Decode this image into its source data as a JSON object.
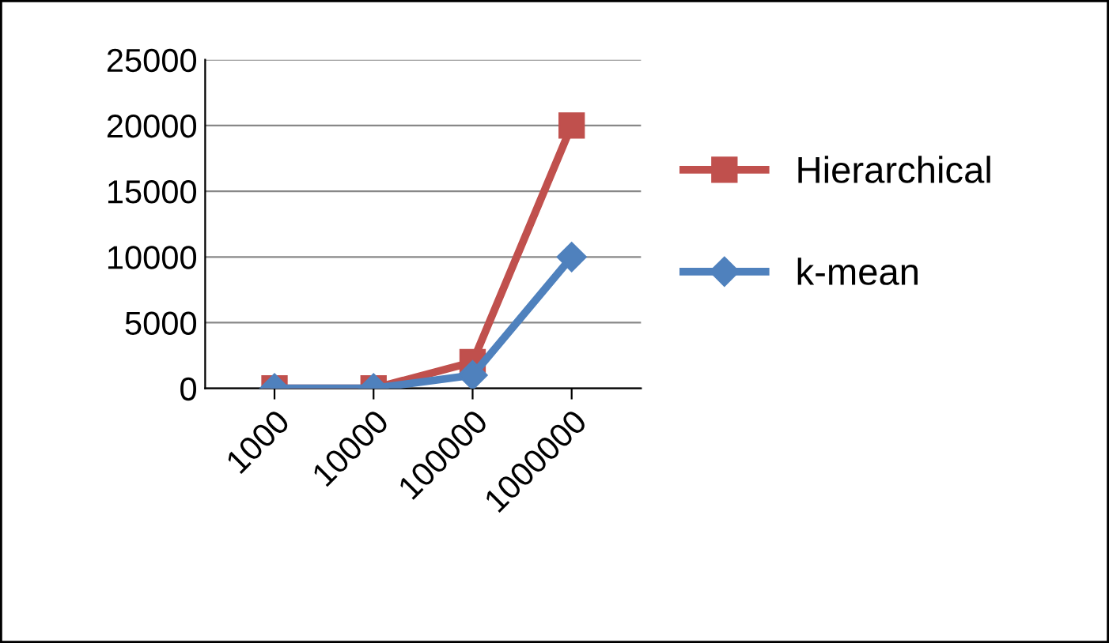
{
  "chart_data": {
    "type": "line",
    "categories": [
      "1000",
      "10000",
      "100000",
      "1000000"
    ],
    "series": [
      {
        "name": "Hierarchical",
        "color": "#c0504d",
        "marker": "square",
        "values": [
          0,
          0,
          2000,
          20000
        ]
      },
      {
        "name": "k-mean",
        "color": "#4f81bd",
        "marker": "diamond",
        "values": [
          0,
          0,
          1000,
          10000
        ]
      }
    ],
    "ylim": [
      0,
      25000
    ],
    "yticks": [
      0,
      5000,
      10000,
      15000,
      20000,
      25000
    ],
    "grid": "y",
    "legend": "right",
    "line_style": "solid"
  }
}
